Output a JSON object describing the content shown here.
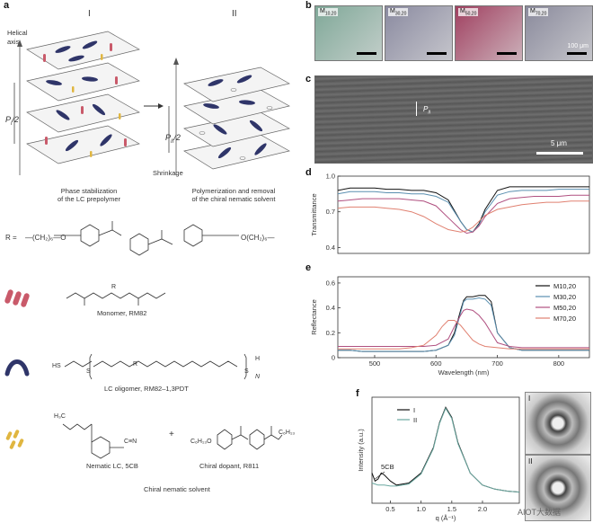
{
  "panel_labels": {
    "a": "a",
    "b": "b",
    "c": "c",
    "d": "d",
    "e": "e",
    "f": "f"
  },
  "panel_a": {
    "stage1": "I",
    "stage2": "II",
    "helical_axis": "Helical\naxis",
    "pitch_left": "P",
    "pitch_left_sub": "i",
    "pitch_left_suffix": "/2",
    "pitch_right": "P",
    "pitch_right_sub": "II",
    "pitch_right_suffix": "/2",
    "shrinkage": "Shrinkage",
    "caption1_line1": "Phase stabilization",
    "caption1_line2": "of the LC prepolymer",
    "caption2_line1": "Polymerization and removal",
    "caption2_line2": "of the chiral nematic solvent",
    "r_label": "R =",
    "r_left": "—(CH₂)₆—O",
    "r_right": "O(CH₂)₆—",
    "monomer_caption": "Monomer, RM82",
    "monomer_r": "R",
    "oligomer_caption": "LC oligomer, RM82–1,3PDT",
    "oligomer_hs": "HS",
    "oligomer_s1": "S",
    "oligomer_r": "R",
    "oligomer_s2": "S",
    "oligomer_h": "H",
    "oligomer_n": "N",
    "nematic_caption": "Nematic LC, 5CB",
    "nematic_h3c": "H₃C",
    "nematic_cn": "C≡N",
    "plus": "+",
    "dopant_caption": "Chiral dopant, R811",
    "dopant_c6h13o": "C₆H₁₃O",
    "dopant_c6h13": "C₆H₁₃",
    "solvent_caption": "Chiral nematic solvent"
  },
  "panel_b": {
    "images": [
      {
        "label": "M",
        "sub": "10,20",
        "color": "#7fa898"
      },
      {
        "label": "M",
        "sub": "30,20",
        "color": "#8a8aa0"
      },
      {
        "label": "M",
        "sub": "50,20",
        "color": "#a04060"
      },
      {
        "label": "M",
        "sub": "70,20",
        "color": "#8a8a9c"
      }
    ],
    "scale": "100 μm"
  },
  "panel_c": {
    "pitch": "P",
    "pitch_sub": "II",
    "scale": "5 μm"
  },
  "chart_data": [
    {
      "type": "line",
      "panel": "d",
      "ylabel": "Transmittance",
      "xlim": [
        440,
        850
      ],
      "ylim": [
        0.35,
        1.0
      ],
      "yticks": [
        "0.4",
        "0.7",
        "1.0"
      ],
      "yticks_values": [
        0.4,
        0.7,
        1.0
      ],
      "series": [
        {
          "name": "M10,20",
          "color": "#111111",
          "x": [
            440,
            460,
            480,
            500,
            520,
            540,
            560,
            580,
            600,
            620,
            640,
            650,
            660,
            670,
            680,
            700,
            720,
            740,
            760,
            780,
            800,
            820,
            850
          ],
          "y": [
            0.88,
            0.9,
            0.9,
            0.9,
            0.89,
            0.89,
            0.88,
            0.88,
            0.86,
            0.8,
            0.62,
            0.55,
            0.53,
            0.6,
            0.72,
            0.88,
            0.91,
            0.91,
            0.91,
            0.91,
            0.91,
            0.91,
            0.91
          ]
        },
        {
          "name": "M30,20",
          "color": "#5a8fb0",
          "x": [
            440,
            460,
            480,
            500,
            520,
            540,
            560,
            580,
            600,
            620,
            640,
            650,
            660,
            670,
            680,
            700,
            720,
            740,
            760,
            780,
            800,
            820,
            850
          ],
          "y": [
            0.85,
            0.87,
            0.87,
            0.87,
            0.86,
            0.86,
            0.85,
            0.85,
            0.83,
            0.78,
            0.62,
            0.55,
            0.53,
            0.59,
            0.7,
            0.84,
            0.87,
            0.88,
            0.88,
            0.88,
            0.89,
            0.89,
            0.89
          ]
        },
        {
          "name": "M50,20",
          "color": "#b05080",
          "x": [
            440,
            460,
            480,
            500,
            520,
            540,
            560,
            580,
            600,
            620,
            640,
            650,
            660,
            670,
            680,
            700,
            720,
            740,
            760,
            780,
            800,
            820,
            850
          ],
          "y": [
            0.79,
            0.8,
            0.81,
            0.81,
            0.81,
            0.81,
            0.8,
            0.79,
            0.75,
            0.65,
            0.55,
            0.52,
            0.53,
            0.58,
            0.66,
            0.77,
            0.81,
            0.82,
            0.83,
            0.83,
            0.83,
            0.84,
            0.84
          ]
        },
        {
          "name": "M70,20",
          "color": "#e08070",
          "x": [
            440,
            460,
            480,
            500,
            520,
            540,
            560,
            580,
            600,
            620,
            640,
            650,
            660,
            670,
            680,
            700,
            720,
            740,
            760,
            780,
            800,
            820,
            850
          ],
          "y": [
            0.73,
            0.74,
            0.74,
            0.74,
            0.73,
            0.72,
            0.7,
            0.66,
            0.6,
            0.55,
            0.53,
            0.54,
            0.57,
            0.62,
            0.67,
            0.72,
            0.74,
            0.76,
            0.77,
            0.78,
            0.78,
            0.79,
            0.79
          ]
        }
      ]
    },
    {
      "type": "line",
      "panel": "e",
      "xlabel": "Wavelength (nm)",
      "ylabel": "Reflectance",
      "xlim": [
        440,
        850
      ],
      "ylim": [
        0,
        0.65
      ],
      "xticks": [
        "500",
        "600",
        "700",
        "800"
      ],
      "xticks_values": [
        500,
        600,
        700,
        800
      ],
      "yticks": [
        "0",
        "0.2",
        "0.4",
        "0.6"
      ],
      "yticks_values": [
        0,
        0.2,
        0.4,
        0.6
      ],
      "series": [
        {
          "name": "M10,20",
          "color": "#111111",
          "x": [
            440,
            460,
            480,
            500,
            520,
            540,
            560,
            580,
            600,
            620,
            630,
            640,
            645,
            650,
            660,
            670,
            680,
            690,
            700,
            720,
            740,
            760,
            780,
            800,
            820,
            850
          ],
          "y": [
            0.06,
            0.06,
            0.05,
            0.05,
            0.05,
            0.05,
            0.05,
            0.05,
            0.06,
            0.1,
            0.2,
            0.38,
            0.46,
            0.49,
            0.49,
            0.5,
            0.5,
            0.45,
            0.2,
            0.08,
            0.06,
            0.06,
            0.06,
            0.06,
            0.06,
            0.06
          ]
        },
        {
          "name": "M30,20",
          "color": "#5a8fb0",
          "x": [
            440,
            460,
            480,
            500,
            520,
            540,
            560,
            580,
            600,
            620,
            630,
            640,
            645,
            650,
            660,
            670,
            680,
            690,
            700,
            720,
            740,
            760,
            780,
            800,
            820,
            850
          ],
          "y": [
            0.06,
            0.06,
            0.05,
            0.05,
            0.05,
            0.05,
            0.05,
            0.05,
            0.06,
            0.1,
            0.18,
            0.36,
            0.45,
            0.47,
            0.47,
            0.48,
            0.47,
            0.42,
            0.2,
            0.08,
            0.06,
            0.06,
            0.06,
            0.06,
            0.06,
            0.06
          ]
        },
        {
          "name": "M50,20",
          "color": "#b05080",
          "x": [
            440,
            460,
            480,
            500,
            520,
            540,
            560,
            580,
            600,
            620,
            630,
            640,
            645,
            650,
            660,
            670,
            680,
            690,
            700,
            720,
            740,
            760,
            780,
            800,
            820,
            850
          ],
          "y": [
            0.09,
            0.09,
            0.09,
            0.09,
            0.09,
            0.09,
            0.09,
            0.09,
            0.1,
            0.15,
            0.25,
            0.34,
            0.38,
            0.39,
            0.38,
            0.34,
            0.28,
            0.2,
            0.12,
            0.09,
            0.08,
            0.08,
            0.08,
            0.08,
            0.08,
            0.08
          ]
        },
        {
          "name": "M70,20",
          "color": "#e08070",
          "x": [
            440,
            460,
            480,
            500,
            520,
            540,
            560,
            580,
            600,
            610,
            620,
            630,
            640,
            650,
            660,
            670,
            680,
            700,
            720,
            740,
            760,
            780,
            800,
            820,
            850
          ],
          "y": [
            0.07,
            0.07,
            0.07,
            0.07,
            0.07,
            0.07,
            0.08,
            0.1,
            0.18,
            0.25,
            0.3,
            0.3,
            0.26,
            0.2,
            0.14,
            0.11,
            0.09,
            0.08,
            0.07,
            0.07,
            0.07,
            0.07,
            0.07,
            0.07,
            0.07
          ]
        }
      ]
    },
    {
      "type": "line",
      "panel": "f",
      "xlabel": "q (Å⁻¹)",
      "ylabel": "Intensity (a.u.)",
      "xlim": [
        0.2,
        2.6
      ],
      "xticks": [
        "0.5",
        "1.0",
        "1.5",
        "2.0"
      ],
      "xticks_values": [
        0.5,
        1.0,
        1.5,
        2.0
      ],
      "annotation": "5CB",
      "series": [
        {
          "name": "I",
          "color": "#111111",
          "x": [
            0.2,
            0.25,
            0.3,
            0.35,
            0.4,
            0.5,
            0.6,
            0.8,
            1.0,
            1.2,
            1.3,
            1.4,
            1.5,
            1.6,
            1.8,
            2.0,
            2.2,
            2.4,
            2.6
          ],
          "y": [
            0.3,
            0.22,
            0.24,
            0.3,
            0.28,
            0.22,
            0.18,
            0.2,
            0.3,
            0.55,
            0.8,
            0.95,
            0.85,
            0.6,
            0.3,
            0.18,
            0.14,
            0.12,
            0.11
          ]
        },
        {
          "name": "II",
          "color": "#6aa8a0",
          "x": [
            0.2,
            0.25,
            0.3,
            0.35,
            0.4,
            0.5,
            0.6,
            0.8,
            1.0,
            1.2,
            1.3,
            1.4,
            1.5,
            1.6,
            1.8,
            2.0,
            2.2,
            2.4,
            2.6
          ],
          "y": [
            0.2,
            0.19,
            0.18,
            0.18,
            0.18,
            0.17,
            0.17,
            0.19,
            0.29,
            0.54,
            0.79,
            0.94,
            0.84,
            0.59,
            0.3,
            0.18,
            0.14,
            0.12,
            0.11
          ]
        }
      ]
    }
  ],
  "panel_f_images": {
    "top": "I",
    "bottom": "II"
  },
  "watermark": "AIOT大数据"
}
